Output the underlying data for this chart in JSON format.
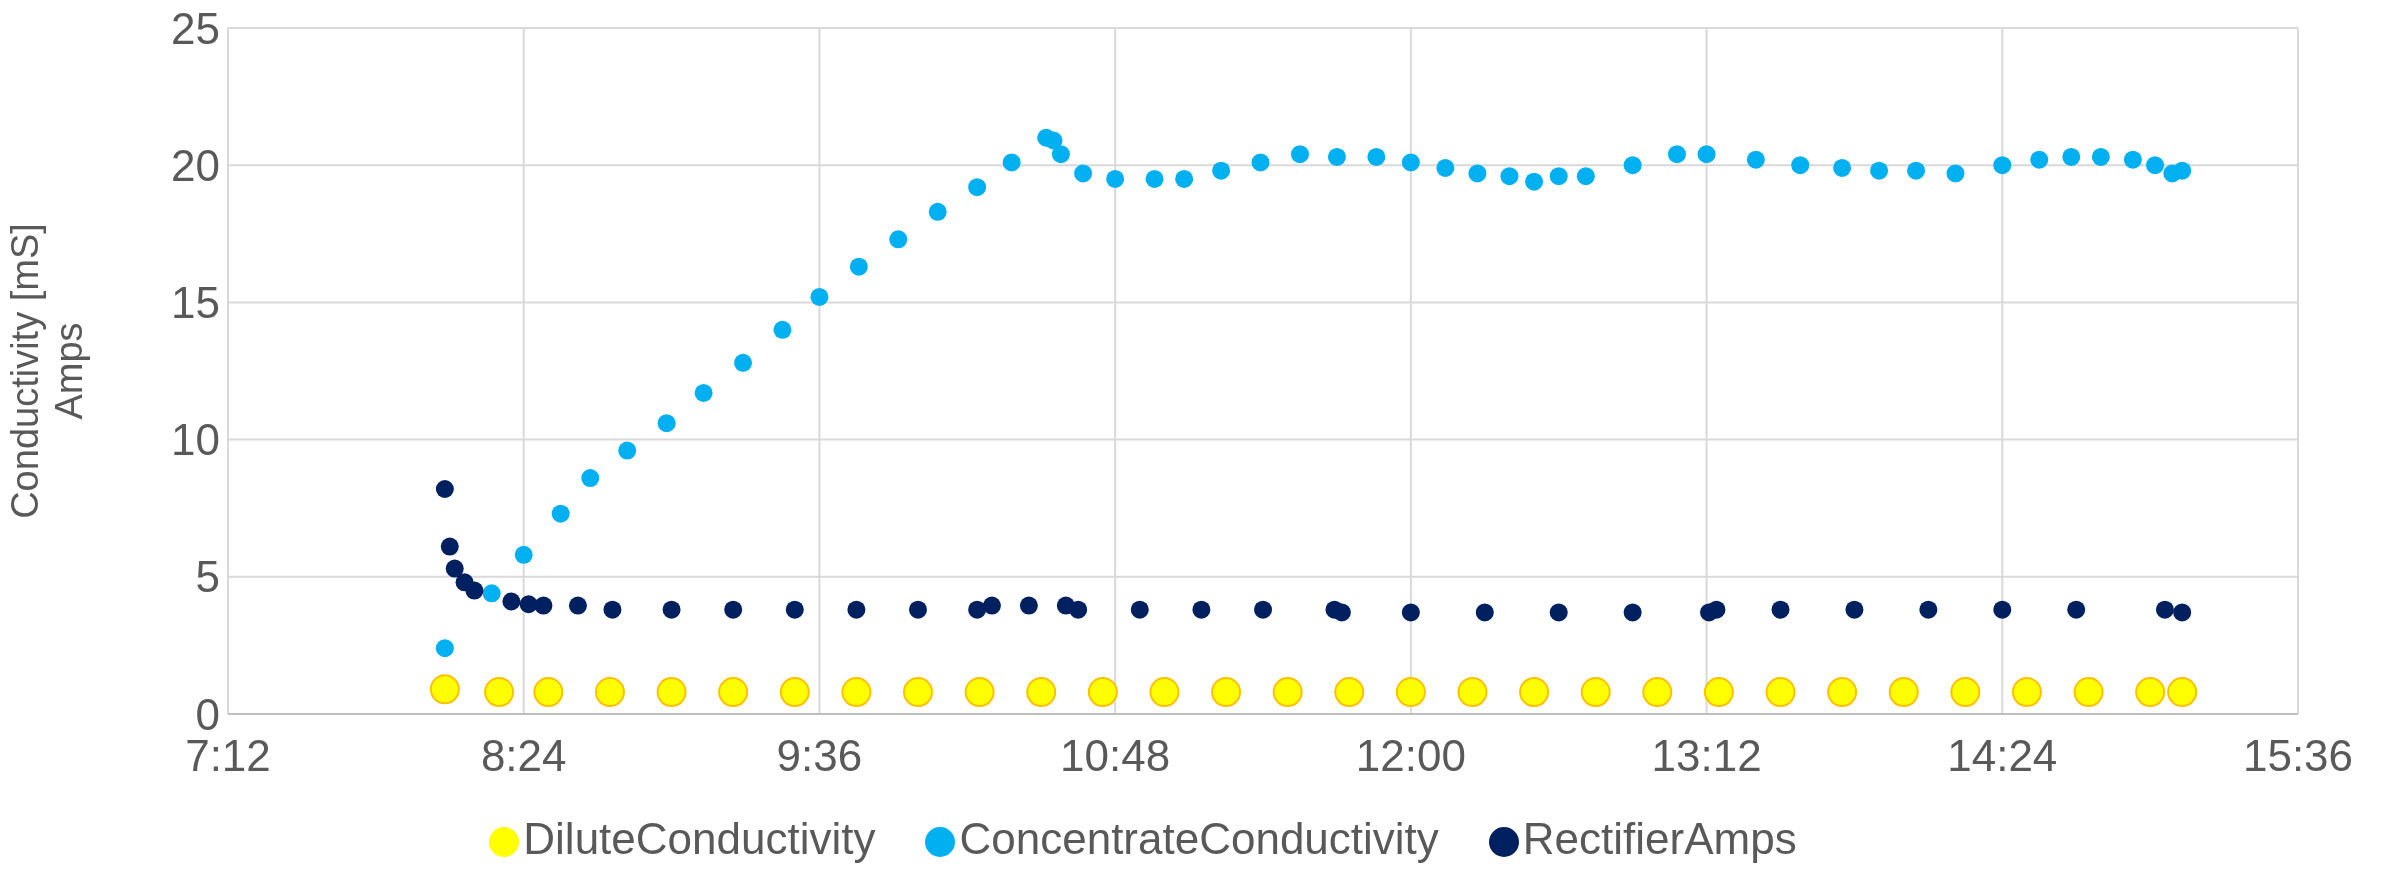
{
  "chart_data": {
    "type": "scatter",
    "ylabel": "Conductivity [mS]\nAmps",
    "marker": "circle",
    "grid": true,
    "legend": "bottom",
    "xlim": [
      7.2,
      15.6
    ],
    "xticks": [
      {
        "value": 7.2,
        "label": "7:12"
      },
      {
        "value": 8.4,
        "label": "8:24"
      },
      {
        "value": 9.6,
        "label": "9:36"
      },
      {
        "value": 10.8,
        "label": "10:48"
      },
      {
        "value": 12.0,
        "label": "12:00"
      },
      {
        "value": 13.2,
        "label": "13:12"
      },
      {
        "value": 14.4,
        "label": "14:24"
      },
      {
        "value": 15.6,
        "label": "15:36"
      }
    ],
    "ylim": [
      0,
      25
    ],
    "yticks": [
      0,
      5,
      10,
      15,
      20,
      25
    ],
    "series": [
      {
        "name": "DiluteConductivity",
        "color": "#ffff00",
        "x": [
          8.08,
          8.3,
          8.5,
          8.75,
          9.0,
          9.25,
          9.5,
          9.75,
          10.0,
          10.25,
          10.5,
          10.75,
          11.0,
          11.25,
          11.5,
          11.75,
          12.0,
          12.25,
          12.5,
          12.75,
          13.0,
          13.25,
          13.5,
          13.75,
          14.0,
          14.25,
          14.5,
          14.75,
          15.0,
          15.13
        ],
        "values": [
          0.9,
          0.8,
          0.8,
          0.8,
          0.8,
          0.8,
          0.8,
          0.8,
          0.8,
          0.8,
          0.8,
          0.8,
          0.8,
          0.8,
          0.8,
          0.8,
          0.8,
          0.8,
          0.8,
          0.8,
          0.8,
          0.8,
          0.8,
          0.8,
          0.8,
          0.8,
          0.8,
          0.8,
          0.8,
          0.8
        ]
      },
      {
        "name": "ConcentrateConductivity",
        "color": "#00b0f0",
        "x": [
          8.08,
          8.27,
          8.4,
          8.55,
          8.67,
          8.82,
          8.98,
          9.13,
          9.29,
          9.45,
          9.6,
          9.76,
          9.92,
          10.08,
          10.24,
          10.38,
          10.52,
          10.55,
          10.58,
          10.67,
          10.8,
          10.96,
          11.08,
          11.23,
          11.39,
          11.55,
          11.7,
          11.86,
          12.0,
          12.14,
          12.27,
          12.4,
          12.5,
          12.6,
          12.71,
          12.9,
          13.08,
          13.2,
          13.4,
          13.58,
          13.75,
          13.9,
          14.05,
          14.21,
          14.4,
          14.55,
          14.68,
          14.8,
          14.93,
          15.02,
          15.09,
          15.13
        ],
        "values": [
          2.4,
          4.4,
          5.8,
          7.3,
          8.6,
          9.6,
          10.6,
          11.7,
          12.8,
          14.0,
          15.2,
          16.3,
          17.3,
          18.3,
          19.2,
          20.1,
          21.0,
          20.9,
          20.4,
          19.7,
          19.5,
          19.5,
          19.5,
          19.8,
          20.1,
          20.4,
          20.3,
          20.3,
          20.1,
          19.9,
          19.7,
          19.6,
          19.4,
          19.6,
          19.6,
          20.0,
          20.4,
          20.4,
          20.2,
          20.0,
          19.9,
          19.8,
          19.8,
          19.7,
          20.0,
          20.2,
          20.3,
          20.3,
          20.2,
          20.0,
          19.7,
          19.8
        ]
      },
      {
        "name": "RectifierAmps",
        "color": "#002060",
        "x": [
          8.08,
          8.1,
          8.12,
          8.16,
          8.2,
          8.35,
          8.42,
          8.48,
          8.62,
          8.76,
          9.0,
          9.25,
          9.5,
          9.75,
          10.0,
          10.24,
          10.3,
          10.45,
          10.6,
          10.65,
          10.9,
          11.15,
          11.4,
          11.69,
          11.72,
          12.0,
          12.3,
          12.6,
          12.9,
          13.21,
          13.24,
          13.5,
          13.8,
          14.1,
          14.4,
          14.7,
          15.06,
          15.13
        ],
        "values": [
          8.2,
          6.1,
          5.3,
          4.8,
          4.5,
          4.1,
          4.0,
          3.95,
          3.95,
          3.8,
          3.8,
          3.8,
          3.8,
          3.8,
          3.8,
          3.8,
          3.95,
          3.95,
          3.95,
          3.8,
          3.8,
          3.8,
          3.8,
          3.8,
          3.7,
          3.7,
          3.7,
          3.7,
          3.7,
          3.7,
          3.8,
          3.8,
          3.8,
          3.8,
          3.8,
          3.8,
          3.8,
          3.7
        ]
      }
    ]
  }
}
